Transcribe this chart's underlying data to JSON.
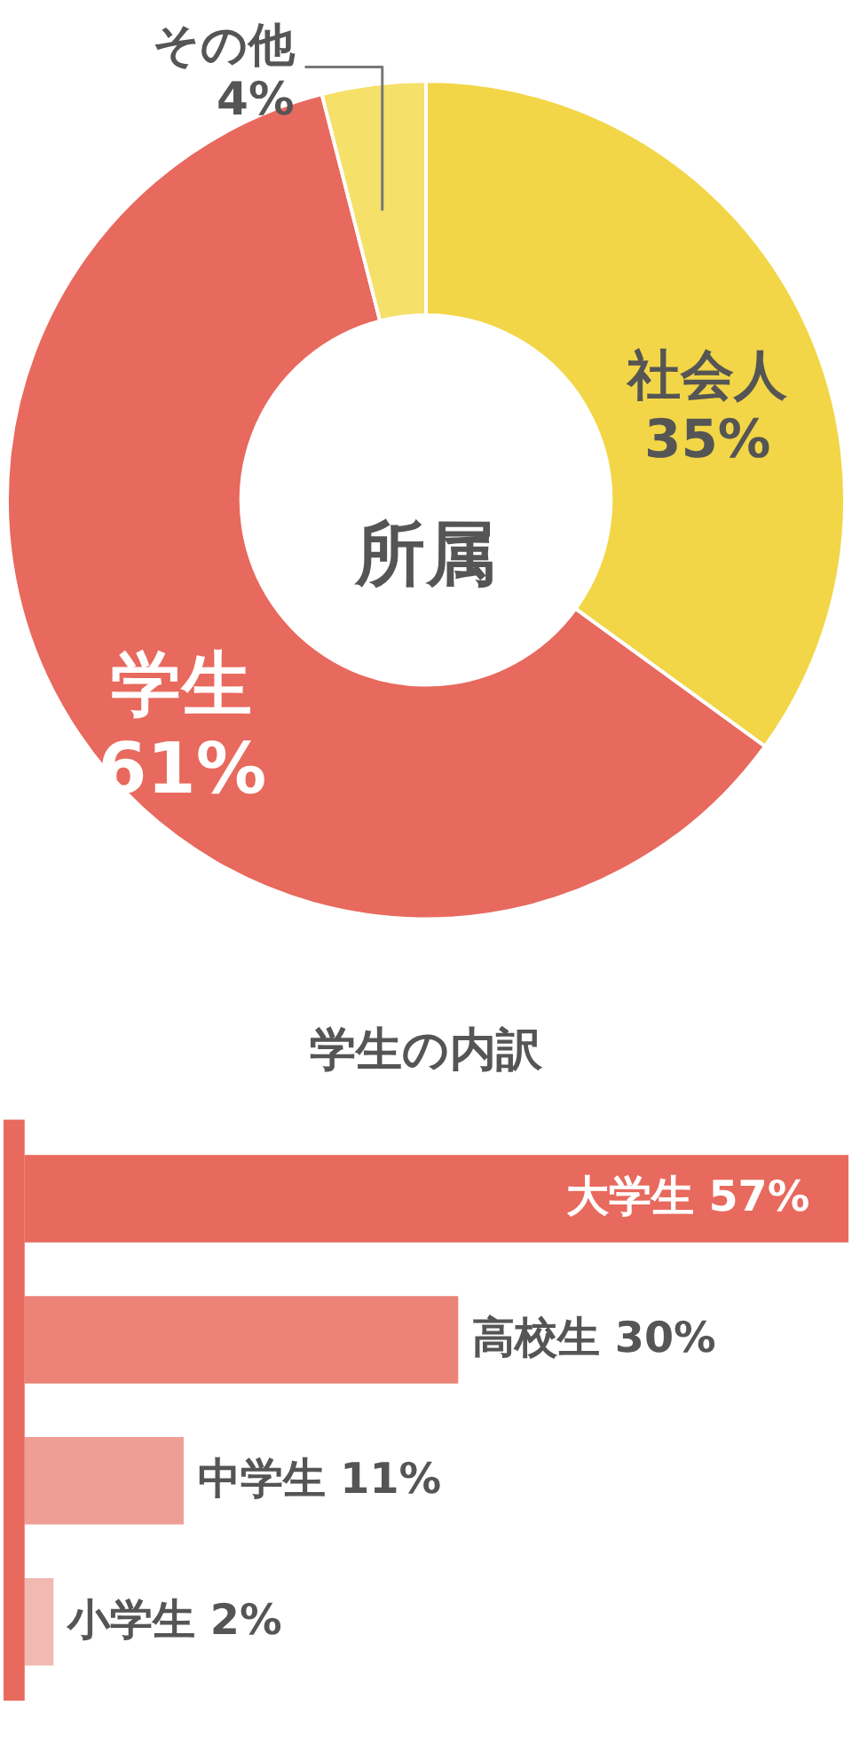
{
  "chart_data": [
    {
      "type": "donut",
      "title": "所属",
      "categories": [
        "社会人",
        "学生",
        "その他"
      ],
      "values": [
        35,
        61,
        4
      ],
      "colors": [
        "#f2d647",
        "#e8695d",
        "#f5e06a"
      ],
      "value_labels": [
        "35%",
        "61%",
        "4%"
      ]
    },
    {
      "type": "bar",
      "orientation": "horizontal",
      "title": "学生の内訳",
      "categories": [
        null,
        null,
        null,
        null
      ],
      "values": [
        57,
        30,
        11,
        2
      ],
      "colors": [
        "#e8695d",
        "#eb8477",
        "#ee9e94",
        "#f1b9b1"
      ],
      "xlim": [
        0,
        57
      ],
      "tick_labels": false,
      "value_labels": [
        "大学生 57%",
        "高校生 30%",
        "中学生 11%",
        "小学生 2%"
      ]
    }
  ]
}
